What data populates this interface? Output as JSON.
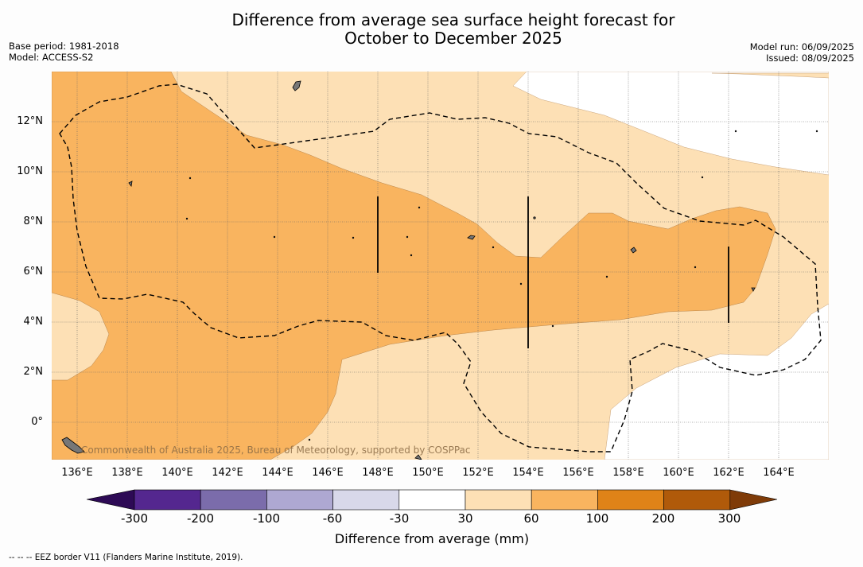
{
  "title": {
    "line1": "Difference from average sea surface height forecast for",
    "line2": "October to December 2025"
  },
  "meta_left": {
    "base_period": "Base period: 1981-2018",
    "model": "Model: ACCESS-S2"
  },
  "meta_right": {
    "model_run": "Model run: 06/09/2025",
    "issued": "Issued: 08/09/2025"
  },
  "map": {
    "lon_range": [
      135,
      166
    ],
    "lat_range": [
      -1.5,
      14
    ],
    "lat_labels": [
      "12°N",
      "10°N",
      "8°N",
      "6°N",
      "4°N",
      "2°N",
      "0°"
    ],
    "lon_labels": [
      "136°E",
      "138°E",
      "140°E",
      "142°E",
      "144°E",
      "146°E",
      "148°E",
      "150°E",
      "152°E",
      "154°E",
      "156°E",
      "158°E",
      "160°E",
      "162°E",
      "164°E"
    ],
    "copyright": "Commonwealth of Australia 2025, Bureau of Meteorology, supported by COSPPac"
  },
  "colorbar": {
    "colors": [
      "#2d0a55",
      "#54278f",
      "#7b6cab",
      "#aea8d2",
      "#d8d8ea",
      "#ffffff",
      "#fde0b5",
      "#f9b45f",
      "#df8318",
      "#b05a0a",
      "#7f3b08"
    ],
    "labels": [
      "-300",
      "-200",
      "-100",
      "-60",
      "-30",
      "30",
      "60",
      "100",
      "200",
      "300"
    ],
    "title": "Difference from average (mm)"
  },
  "footnote": "--  --  -- EEZ border V11 (Flanders Marine Institute, 2019).",
  "colors": {
    "light_orange": "#fde0b5",
    "medium_orange": "#f9b45f",
    "white": "#ffffff",
    "grid": "#555555",
    "eez": "#000000"
  }
}
